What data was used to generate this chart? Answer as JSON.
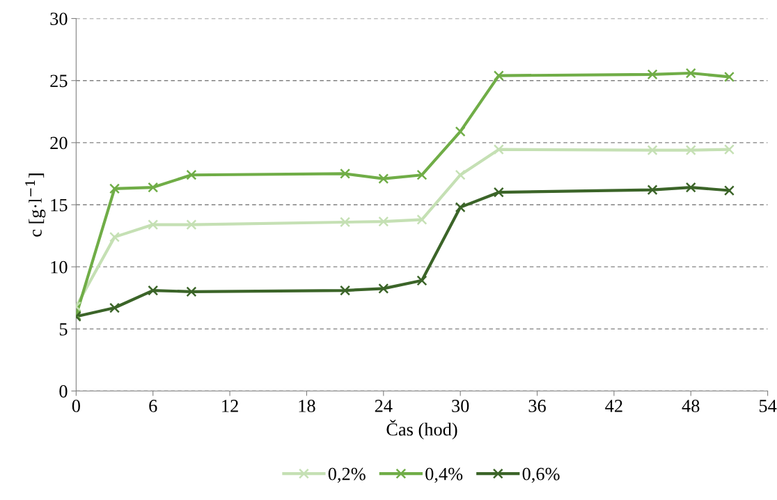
{
  "chart_data": {
    "type": "line",
    "xlabel": "Čas (hod)",
    "ylabel": "c [g·l$^{−1}$]",
    "x": [
      0,
      3,
      6,
      9,
      21,
      24,
      27,
      30,
      33,
      45,
      48,
      51
    ],
    "series": [
      {
        "name": "0,2%",
        "color": "#c5e0b4",
        "values": [
          6.8,
          12.4,
          13.4,
          13.4,
          13.6,
          13.65,
          13.8,
          17.4,
          19.45,
          19.4,
          19.4,
          19.45
        ]
      },
      {
        "name": "0,4%",
        "color": "#70ad47",
        "values": [
          6.1,
          16.3,
          16.4,
          17.4,
          17.5,
          17.1,
          17.4,
          20.9,
          25.4,
          25.5,
          25.6,
          25.3
        ]
      },
      {
        "name": "0,6%",
        "color": "#3b6428",
        "values": [
          6.0,
          6.7,
          8.1,
          8.0,
          8.1,
          8.25,
          8.9,
          14.8,
          16.0,
          16.2,
          16.4,
          16.15
        ]
      }
    ],
    "xlim": [
      0,
      54
    ],
    "xticks": [
      0,
      6,
      12,
      18,
      24,
      30,
      36,
      42,
      48,
      54
    ],
    "ylim": [
      0,
      30
    ],
    "yticks": [
      0,
      5,
      10,
      15,
      20,
      25,
      30
    ],
    "grid": "y",
    "legend": "bottom",
    "marker": "cross",
    "line_style": "solid"
  }
}
